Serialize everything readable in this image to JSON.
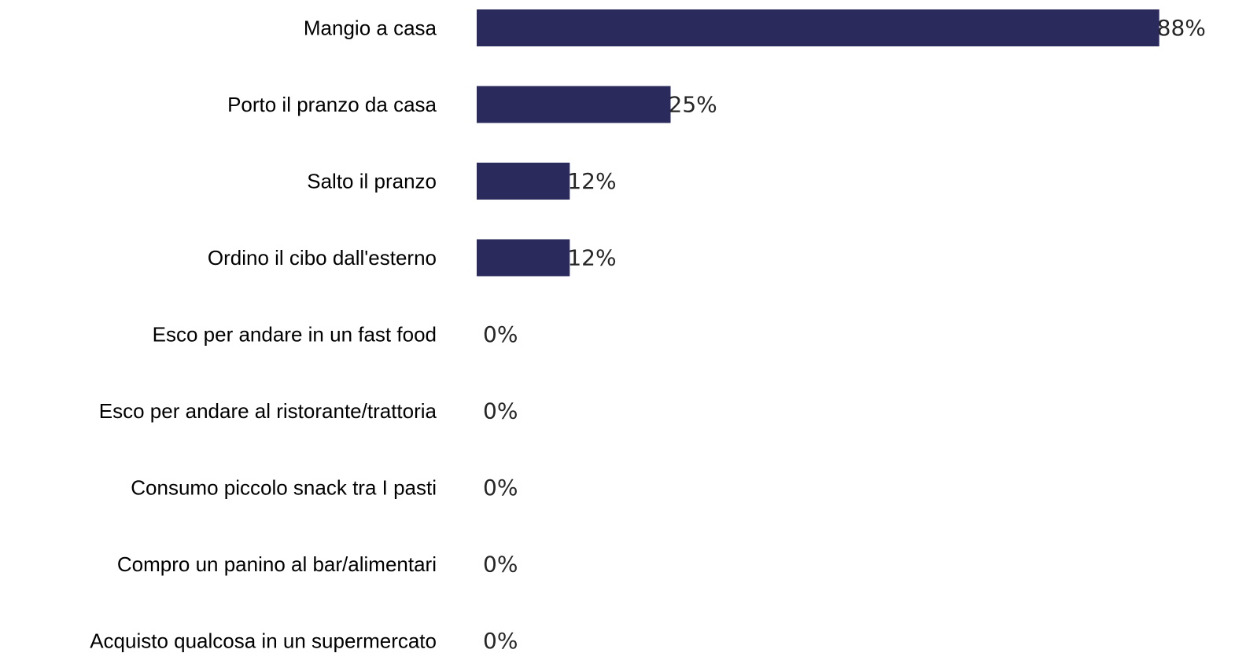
{
  "chart_data": {
    "type": "bar",
    "orientation": "horizontal",
    "categories": [
      "Mangio a casa",
      "Porto il pranzo da casa",
      "Salto il pranzo",
      "Ordino il cibo dall'esterno",
      "Esco per andare in un fast food",
      "Esco per andare al ristorante/trattoria",
      "Consumo piccolo snack tra I pasti",
      "Compro un panino al bar/alimentari",
      "Acquisto qualcosa in un supermercato"
    ],
    "values": [
      88,
      25,
      12,
      12,
      0,
      0,
      0,
      0,
      0
    ],
    "value_labels": [
      "88%",
      "25%",
      "12%",
      "12%",
      "0%",
      "0%",
      "0%",
      "0%",
      "0%"
    ],
    "unit": "%",
    "xlim": [
      0,
      100
    ],
    "grid": false,
    "legend": "none",
    "bar_color": "#2b2a5c"
  }
}
